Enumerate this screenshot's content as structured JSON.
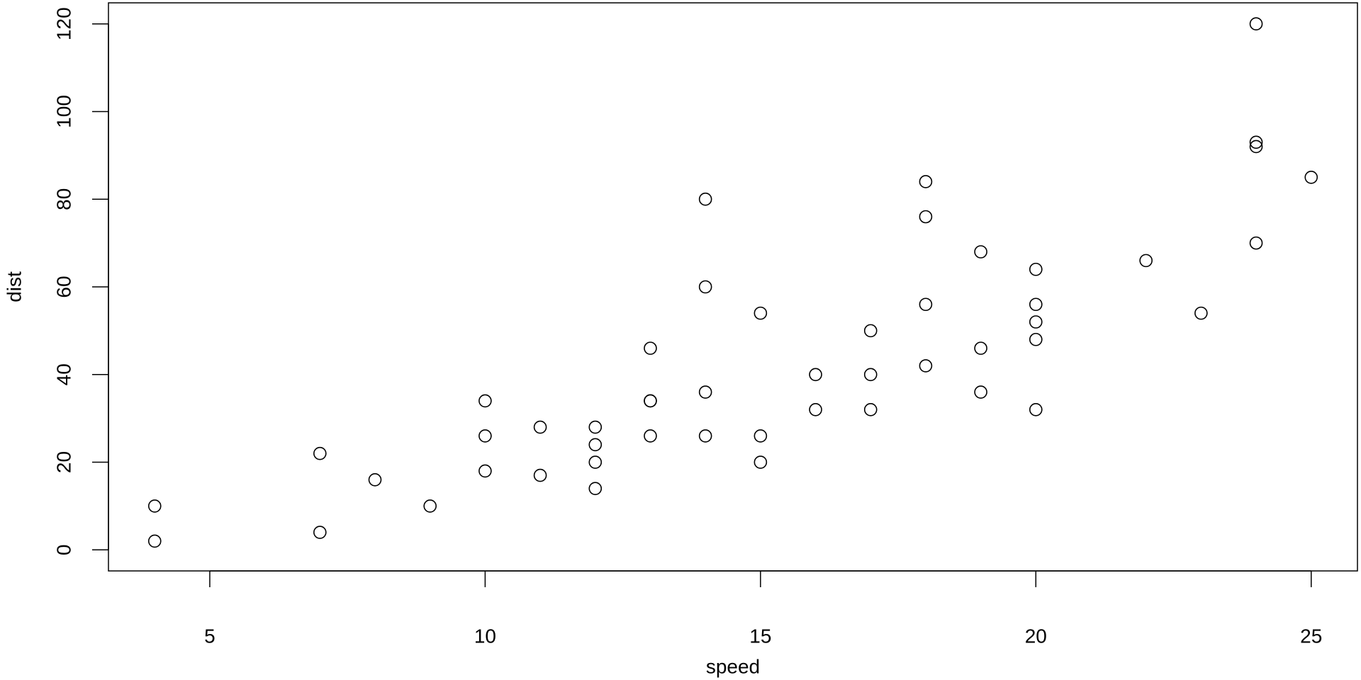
{
  "chart_data": {
    "type": "scatter",
    "xlabel": "speed",
    "ylabel": "dist",
    "color": "#000000",
    "x": [
      4,
      4,
      7,
      7,
      8,
      9,
      10,
      10,
      10,
      11,
      11,
      12,
      12,
      12,
      12,
      13,
      13,
      13,
      13,
      14,
      14,
      14,
      14,
      15,
      15,
      15,
      16,
      16,
      17,
      17,
      17,
      18,
      18,
      18,
      18,
      19,
      19,
      19,
      20,
      20,
      20,
      20,
      20,
      22,
      23,
      24,
      24,
      24,
      24,
      25
    ],
    "values": [
      2,
      10,
      4,
      22,
      16,
      10,
      18,
      26,
      34,
      17,
      28,
      14,
      20,
      24,
      28,
      26,
      34,
      34,
      46,
      26,
      36,
      60,
      80,
      20,
      26,
      54,
      32,
      40,
      32,
      40,
      50,
      42,
      56,
      76,
      84,
      36,
      46,
      68,
      32,
      48,
      52,
      56,
      64,
      66,
      54,
      70,
      92,
      93,
      120,
      85
    ],
    "xlim": [
      3.16,
      25.84
    ],
    "ylim": [
      -4.8,
      124.8
    ],
    "xticks": [
      5,
      10,
      15,
      20,
      25
    ],
    "yticks": [
      0,
      20,
      40,
      60,
      80,
      100,
      120
    ]
  }
}
